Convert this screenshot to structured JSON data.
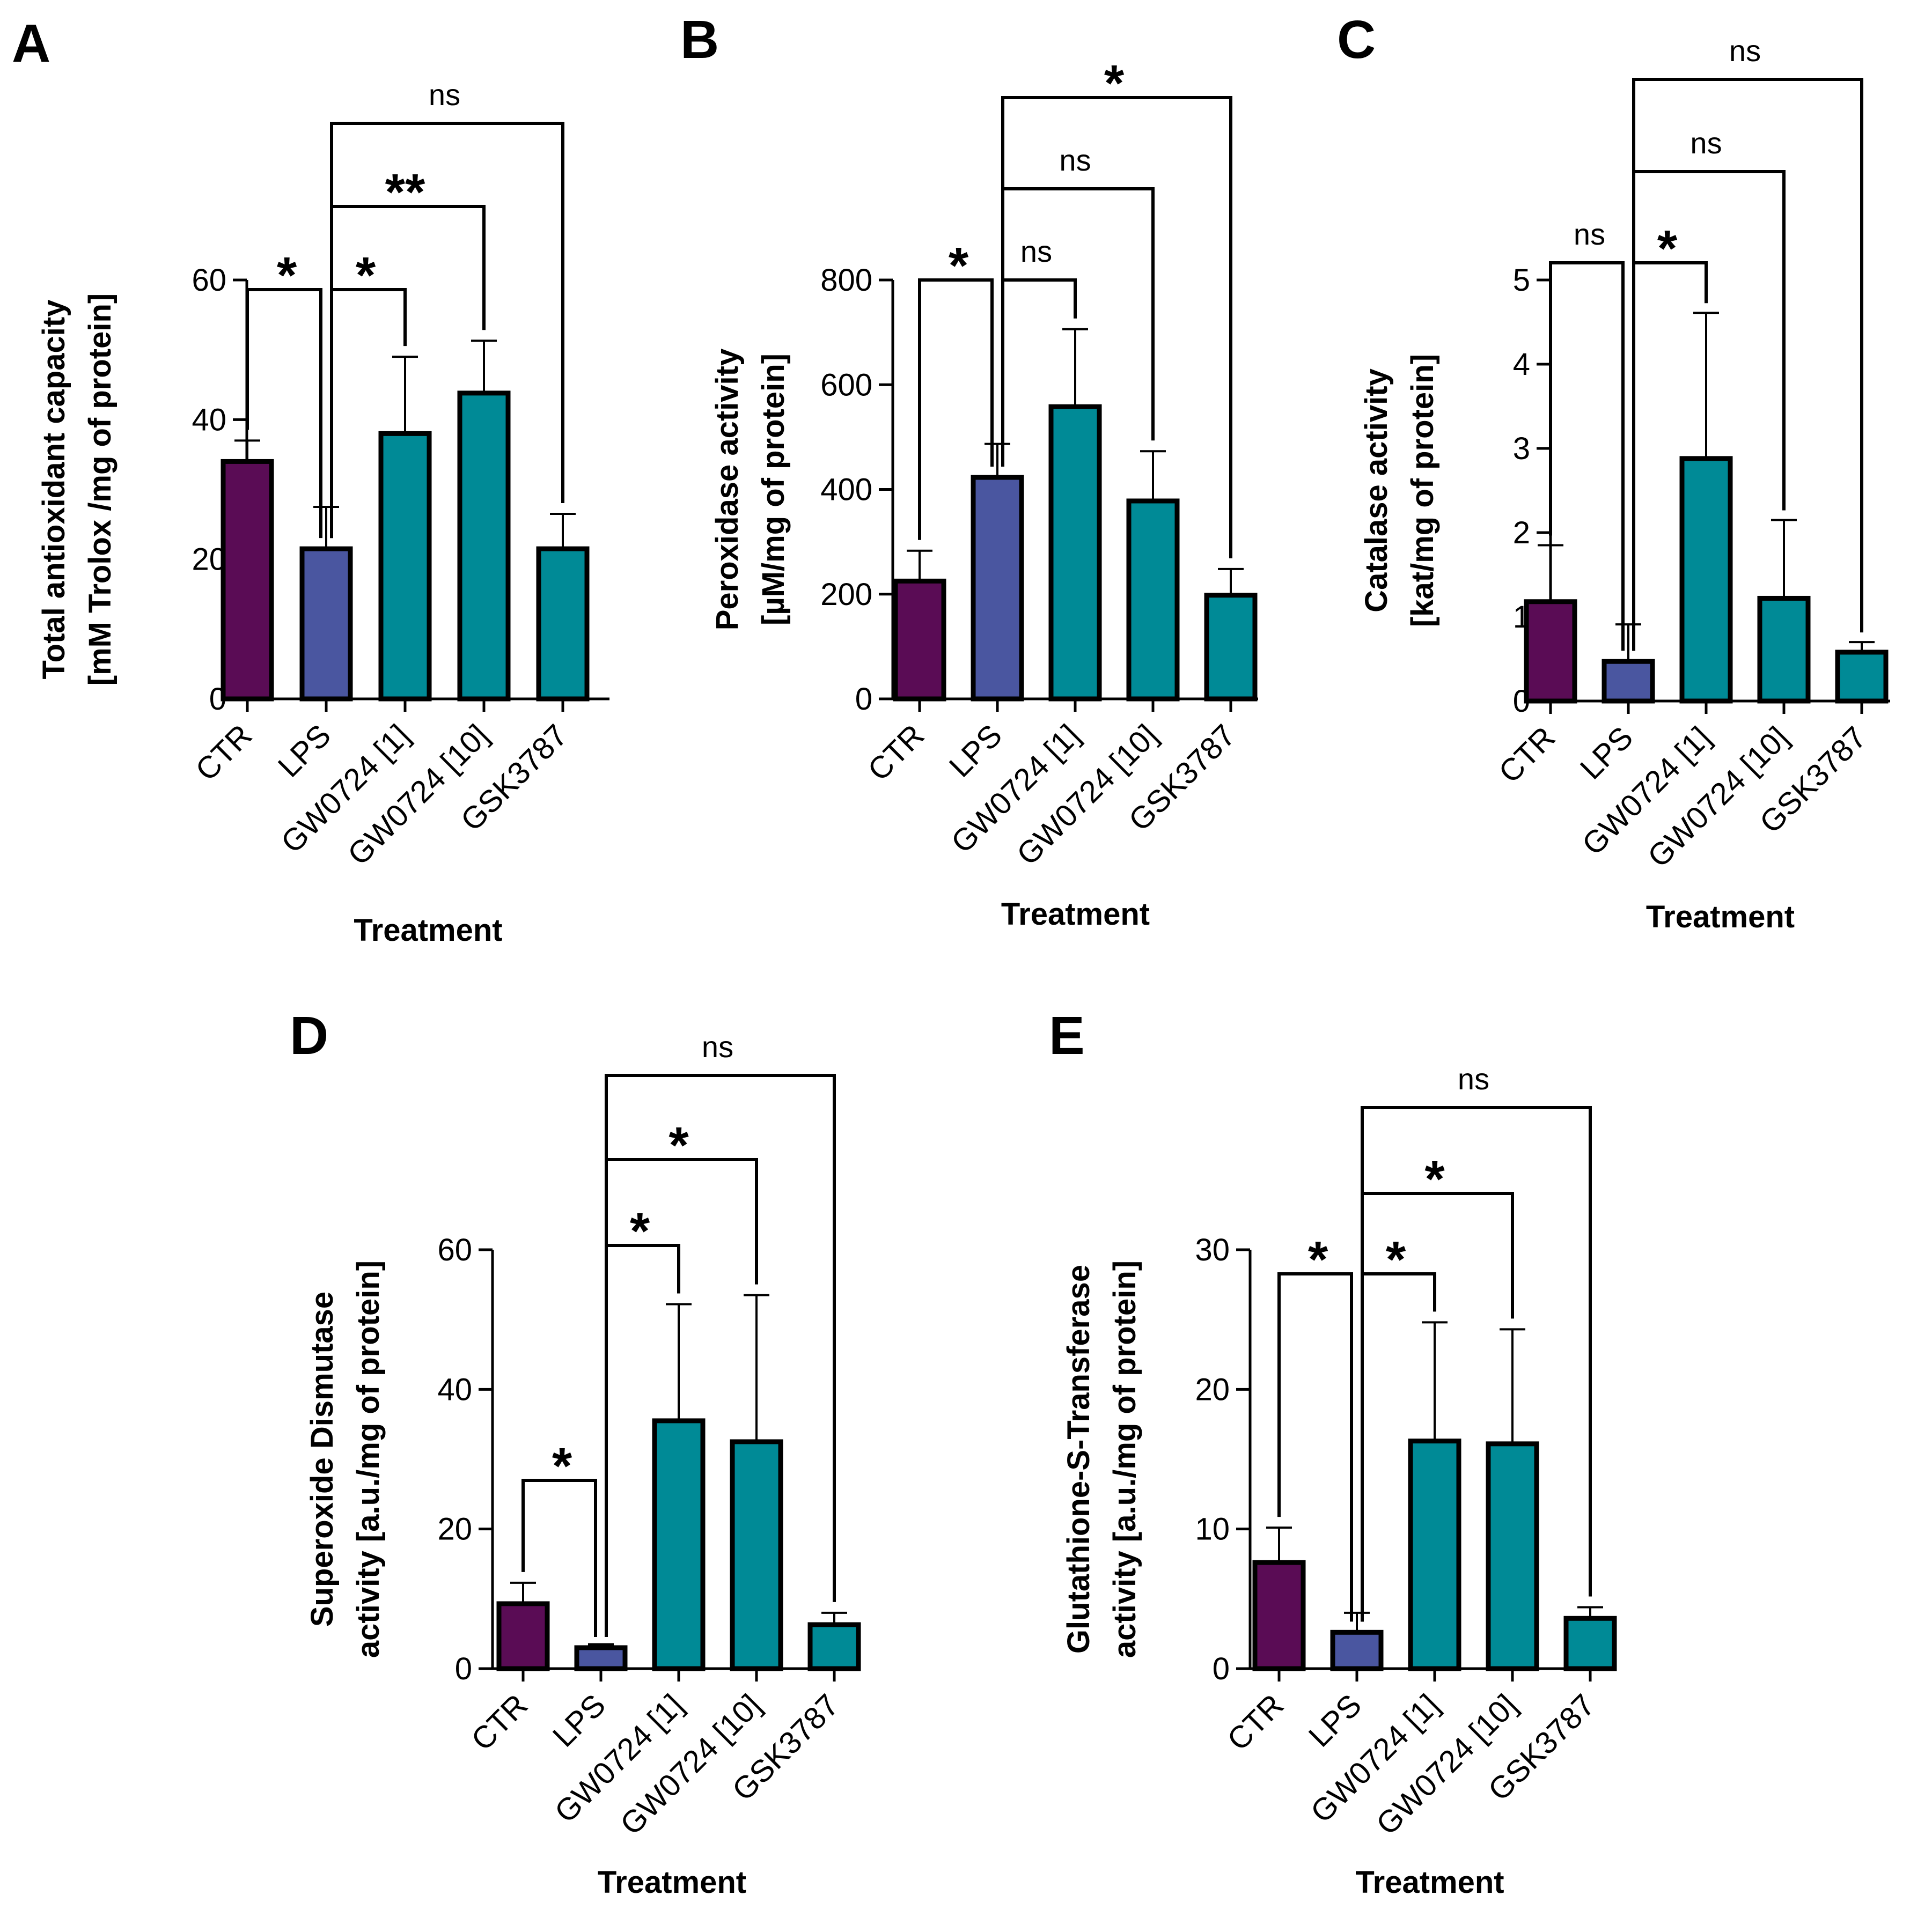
{
  "figure": {
    "colors": {
      "CTR": "#5a0c55",
      "LPS": "#4a56a0",
      "treated": "#008a96",
      "outline": "#000000"
    }
  },
  "chart_data": [
    {
      "id": "A",
      "type": "bar",
      "panel_letter": "A",
      "categories": [
        "CTR",
        "LPS",
        "GW0724 [1]",
        "GW0724 [10]",
        "GSK3787"
      ],
      "values": [
        34,
        21.5,
        38,
        43.8,
        21.5
      ],
      "errors": [
        3,
        6,
        11,
        7.5,
        5
      ],
      "ylabel_lines": [
        "Total antioxidant capacity",
        "[mM Trolox /mg of protein]"
      ],
      "xlabel": "Treatment",
      "ylim": [
        0,
        60
      ],
      "yticks": [
        0,
        20,
        40,
        60
      ],
      "comparisons": [
        {
          "from": 0,
          "to": 1,
          "label": "*"
        },
        {
          "from": 1,
          "to": 2,
          "label": "*"
        },
        {
          "from": 1,
          "to": 3,
          "label": "**"
        },
        {
          "from": 1,
          "to": 4,
          "label": "ns"
        }
      ]
    },
    {
      "id": "B",
      "type": "bar",
      "panel_letter": "B",
      "categories": [
        "CTR",
        "LPS",
        "GW0724 [1]",
        "GW0724 [10]",
        "GSK3787"
      ],
      "values": [
        225,
        423,
        558,
        378,
        198
      ],
      "errors": [
        58,
        64,
        148,
        95,
        50
      ],
      "ylabel_lines": [
        "Peroxidase activity",
        "[µM/mg of protein]"
      ],
      "xlabel": "Treatment",
      "ylim": [
        0,
        800
      ],
      "yticks": [
        0,
        200,
        400,
        600,
        800
      ],
      "comparisons": [
        {
          "from": 0,
          "to": 1,
          "label": "*"
        },
        {
          "from": 1,
          "to": 2,
          "label": "ns"
        },
        {
          "from": 1,
          "to": 3,
          "label": "ns"
        },
        {
          "from": 1,
          "to": 4,
          "label": "*"
        }
      ]
    },
    {
      "id": "C",
      "type": "bar",
      "panel_letter": "C",
      "categories": [
        "CTR",
        "LPS",
        "GW0724 [1]",
        "GW0724 [10]",
        "GSK3787"
      ],
      "values": [
        1.18,
        0.47,
        2.88,
        1.22,
        0.58
      ],
      "errors": [
        0.67,
        0.44,
        1.73,
        0.93,
        0.12
      ],
      "ylabel_lines": [
        "Catalase activity",
        "[kat/mg of protein]"
      ],
      "xlabel": "Treatment",
      "ylim": [
        0,
        5
      ],
      "yticks": [
        0,
        1,
        2,
        3,
        4,
        5
      ],
      "comparisons": [
        {
          "from": 0,
          "to": 1,
          "label": "ns"
        },
        {
          "from": 1,
          "to": 2,
          "label": "*"
        },
        {
          "from": 1,
          "to": 3,
          "label": "ns"
        },
        {
          "from": 1,
          "to": 4,
          "label": "ns"
        }
      ]
    },
    {
      "id": "D",
      "type": "bar",
      "panel_letter": "D",
      "categories": [
        "CTR",
        "LPS",
        "GW0724 [1]",
        "GW0724 [10]",
        "GSK3787"
      ],
      "values": [
        9.3,
        3,
        35.5,
        32.5,
        6.3
      ],
      "errors": [
        3,
        0.5,
        16.7,
        21,
        1.7
      ],
      "ylabel_lines": [
        "Superoxide Dismutase",
        "activity [a.u./mg of protein]"
      ],
      "xlabel": "Treatment",
      "ylim": [
        0,
        60
      ],
      "yticks": [
        0,
        20,
        40,
        60
      ],
      "comparisons": [
        {
          "from": 0,
          "to": 1,
          "label": "*"
        },
        {
          "from": 1,
          "to": 2,
          "label": "*"
        },
        {
          "from": 1,
          "to": 3,
          "label": "*"
        },
        {
          "from": 1,
          "to": 4,
          "label": "ns"
        }
      ]
    },
    {
      "id": "E",
      "type": "bar",
      "panel_letter": "E",
      "categories": [
        "CTR",
        "LPS",
        "GW0724 [1]",
        "GW0724 [10]",
        "GSK3787"
      ],
      "values": [
        7.6,
        2.6,
        16.3,
        16.1,
        3.6
      ],
      "errors": [
        2.5,
        1.4,
        8.5,
        8.2,
        0.8
      ],
      "ylabel_lines": [
        "Glutathione-S-Transferase",
        "activity [a.u./mg of protein]"
      ],
      "xlabel": "Treatment",
      "ylim": [
        0,
        30
      ],
      "yticks": [
        0,
        10,
        20,
        30
      ],
      "comparisons": [
        {
          "from": 0,
          "to": 1,
          "label": "*"
        },
        {
          "from": 1,
          "to": 2,
          "label": "*"
        },
        {
          "from": 1,
          "to": 3,
          "label": "*"
        },
        {
          "from": 1,
          "to": 4,
          "label": "ns"
        }
      ]
    }
  ]
}
